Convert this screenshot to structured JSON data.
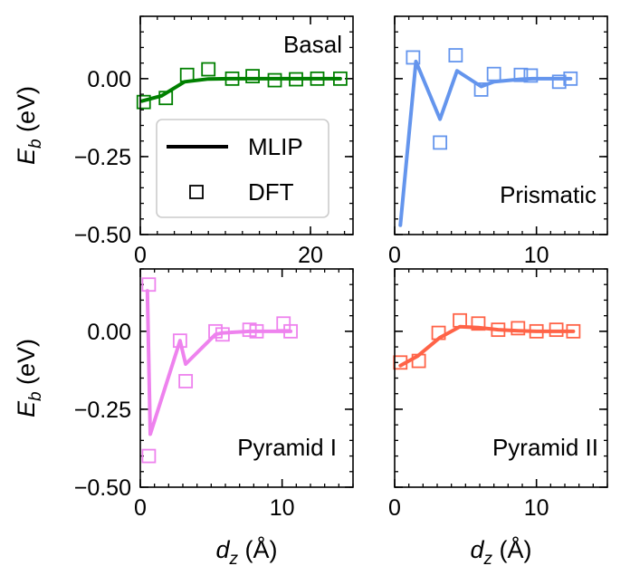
{
  "chart_data": [
    {
      "type": "line",
      "title": "Basal",
      "color": "#008000",
      "xlim": [
        0,
        25
      ],
      "ylim": [
        -0.5,
        0.2
      ],
      "xticks": [
        0,
        20
      ],
      "xtick_labels": [
        "0",
        "20"
      ],
      "yticks": [
        -0.5,
        -0.25,
        0.0
      ],
      "ytick_labels": [
        "−0.50",
        "−0.25",
        "0.00"
      ],
      "xlabel": "",
      "ylabel": "E_b (eV)",
      "series": [
        {
          "name": "MLIP",
          "style": "line",
          "x": [
            0.2,
            2.5,
            5.2,
            8.0,
            10.5,
            13.5,
            16.0,
            18.5,
            21.0,
            23.5
          ],
          "y": [
            -0.072,
            -0.055,
            -0.01,
            -0.001,
            0.0,
            0.0,
            0.0,
            0.0,
            0.0,
            0.0
          ]
        },
        {
          "name": "DFT",
          "style": "marker",
          "x": [
            0.4,
            3.0,
            5.5,
            8.0,
            10.8,
            13.2,
            15.8,
            18.3,
            20.8,
            23.5
          ],
          "y": [
            -0.075,
            -0.062,
            0.012,
            0.03,
            0.0,
            0.008,
            -0.005,
            -0.002,
            0.0,
            0.0
          ]
        }
      ]
    },
    {
      "type": "line",
      "title": "Prismatic",
      "color": "#6495ED",
      "xlim": [
        0,
        15
      ],
      "ylim": [
        -0.5,
        0.2
      ],
      "xticks": [
        0,
        10
      ],
      "xtick_labels": [
        "0",
        "10"
      ],
      "yticks": [
        -0.5,
        -0.25,
        0.0
      ],
      "ytick_labels": [],
      "xlabel": "",
      "ylabel": "",
      "series": [
        {
          "name": "MLIP",
          "style": "line",
          "x": [
            0.4,
            1.5,
            3.2,
            4.4,
            6.1,
            7.0,
            8.9,
            9.7,
            11.6,
            12.4
          ],
          "y": [
            -0.47,
            0.055,
            -0.13,
            0.025,
            -0.025,
            -0.01,
            -0.002,
            0.0,
            0.0,
            0.0
          ]
        },
        {
          "name": "DFT",
          "style": "marker",
          "x": [
            1.3,
            3.2,
            4.3,
            6.1,
            7.0,
            8.9,
            9.6,
            11.6,
            12.4
          ],
          "y": [
            0.068,
            -0.205,
            0.075,
            -0.035,
            0.015,
            0.012,
            0.01,
            -0.01,
            0.0
          ]
        }
      ]
    },
    {
      "type": "line",
      "title": "Pyramid I",
      "color": "#EE82EE",
      "xlim": [
        0,
        15
      ],
      "ylim": [
        -0.5,
        0.2
      ],
      "xticks": [
        0,
        10
      ],
      "xtick_labels": [
        "0",
        "10"
      ],
      "yticks": [
        -0.5,
        -0.25,
        0.0
      ],
      "ytick_labels": [
        "−0.50",
        "−0.25",
        "0.00"
      ],
      "xlabel": "d_z (Å)",
      "ylabel": "E_b (eV)",
      "series": [
        {
          "name": "MLIP",
          "style": "line",
          "x": [
            0.5,
            0.7,
            2.8,
            3.2,
            5.3,
            5.8,
            7.7,
            8.2,
            10.1,
            10.6
          ],
          "y": [
            0.13,
            -0.33,
            -0.03,
            -0.105,
            -0.01,
            -0.005,
            0.0,
            0.0,
            0.0,
            0.0
          ]
        },
        {
          "name": "DFT",
          "style": "marker",
          "x": [
            0.6,
            0.6,
            2.8,
            3.2,
            5.3,
            5.8,
            7.7,
            8.2,
            10.1,
            10.6
          ],
          "y": [
            0.15,
            -0.4,
            -0.03,
            -0.16,
            0.0,
            -0.01,
            0.005,
            0.0,
            0.025,
            0.0
          ]
        }
      ]
    },
    {
      "type": "line",
      "title": "Pyramid II",
      "color": "#FF6347",
      "xlim": [
        0,
        15
      ],
      "ylim": [
        -0.5,
        0.2
      ],
      "xticks": [
        0,
        10
      ],
      "xtick_labels": [
        "0",
        "10"
      ],
      "yticks": [
        -0.5,
        -0.25,
        0.0
      ],
      "ytick_labels": [],
      "xlabel": "d_z (Å)",
      "ylabel": "",
      "series": [
        {
          "name": "MLIP",
          "style": "line",
          "x": [
            0.4,
            1.6,
            3.2,
            4.6,
            5.9,
            7.3,
            8.7,
            10.0,
            11.4,
            12.6
          ],
          "y": [
            -0.11,
            -0.08,
            -0.02,
            0.015,
            0.012,
            0.005,
            0.002,
            0.0,
            0.0,
            0.0
          ]
        },
        {
          "name": "DFT",
          "style": "marker",
          "x": [
            0.4,
            1.7,
            3.1,
            4.6,
            5.9,
            7.3,
            8.7,
            10.0,
            11.4,
            12.6
          ],
          "y": [
            -0.1,
            -0.095,
            -0.005,
            0.035,
            0.025,
            0.005,
            0.01,
            0.0,
            0.005,
            0.0
          ]
        }
      ]
    }
  ],
  "legend": {
    "placement": "lower-left of first panel",
    "entries": [
      {
        "label": "MLIP",
        "style": "line"
      },
      {
        "label": "DFT",
        "style": "marker"
      }
    ]
  }
}
